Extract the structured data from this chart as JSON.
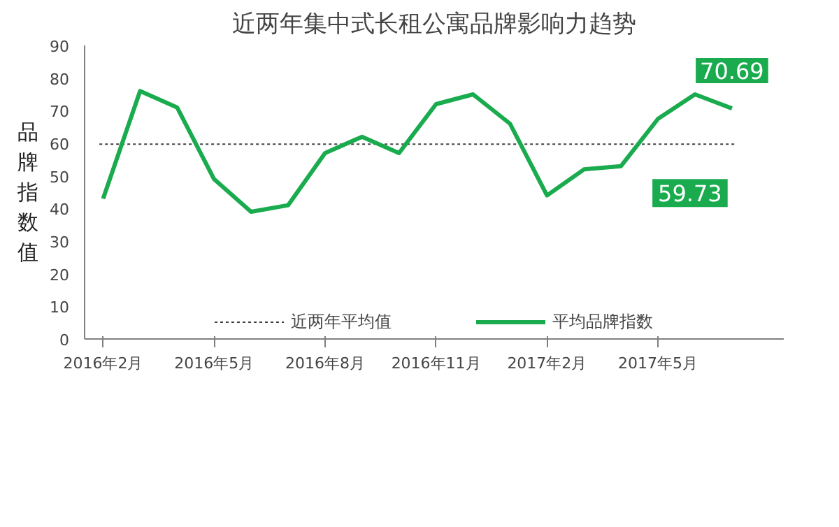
{
  "chart_data": {
    "type": "line",
    "title": "近两年集中式长租公寓品牌影响力趋势",
    "ylabel": "品牌指数值",
    "categories": [
      "2016年2月",
      null,
      null,
      "2016年5月",
      null,
      null,
      "2016年8月",
      null,
      null,
      "2016年11月",
      null,
      null,
      "2017年2月",
      null,
      null,
      "2017年5月",
      null,
      null
    ],
    "series": [
      {
        "name": "平均品牌指数",
        "color": "#1aab4e",
        "values": [
          43,
          76,
          71,
          49,
          39,
          41,
          57,
          62,
          57,
          72,
          75,
          66,
          44,
          52,
          53,
          67.5,
          75,
          70.69
        ],
        "value_labels": [
          null,
          null,
          null,
          null,
          null,
          null,
          null,
          null,
          null,
          null,
          null,
          null,
          null,
          null,
          null,
          null,
          null,
          "70.69"
        ]
      }
    ],
    "ref_lines": [
      {
        "axis": "y",
        "value": 59.73,
        "label": "近两年平均值",
        "color": "#404040",
        "line_style": "dotted"
      }
    ],
    "annotations": [
      {
        "text": "59.73",
        "y": 59.73
      }
    ],
    "ylim": [
      0,
      90
    ],
    "yticks": [
      0,
      10,
      20,
      30,
      40,
      50,
      60,
      70,
      80,
      90
    ],
    "legend": "bottom",
    "grid": false,
    "marker": "none",
    "line_style": "solid"
  }
}
